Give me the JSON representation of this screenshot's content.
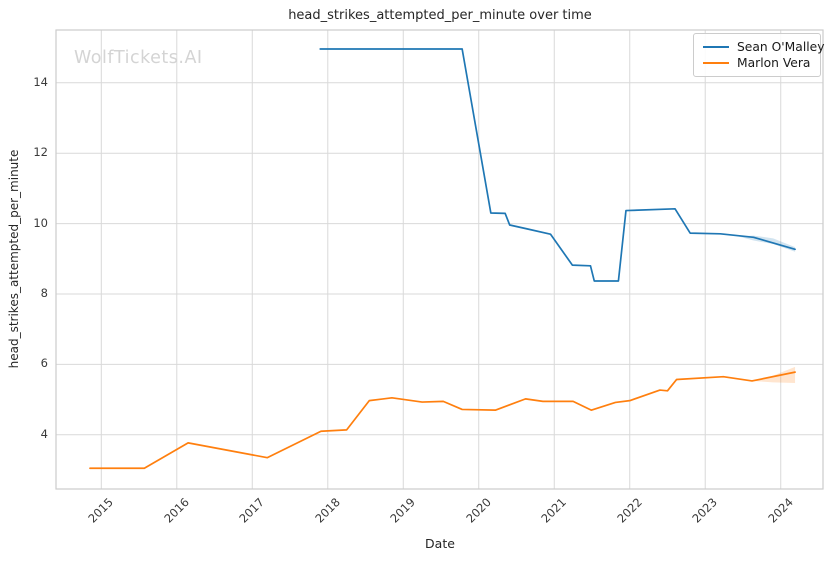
{
  "watermark": {
    "text": "WolfTickets.AI",
    "color": "#d4d4d4"
  },
  "legend": {
    "entries": [
      {
        "label": "Sean O'Malley",
        "color": "#1f77b4"
      },
      {
        "label": "Marlon Vera",
        "color": "#ff7f0e"
      }
    ]
  },
  "chart_data": {
    "type": "line",
    "title": "head_strikes_attempted_per_minute over time",
    "xlabel": "Date",
    "ylabel": "head_strikes_attempted_per_minute",
    "xlim": [
      2014.4,
      2024.56
    ],
    "ylim": [
      2.46,
      15.5
    ],
    "xticks": [
      2015,
      2016,
      2017,
      2018,
      2019,
      2020,
      2021,
      2022,
      2023,
      2024
    ],
    "yticks": [
      4,
      6,
      8,
      10,
      12,
      14
    ],
    "grid": true,
    "grid_color": "#d9d9d9",
    "border_color": "#cccccc",
    "legend_position": "upper-right",
    "series": [
      {
        "name": "Sean O'Malley",
        "color": "#1f77b4",
        "x": [
          2017.9,
          2019.78,
          2020.16,
          2020.35,
          2020.41,
          2020.64,
          2020.95,
          2021.24,
          2021.48,
          2021.53,
          2021.85,
          2021.95,
          2022.6,
          2022.8,
          2023.2,
          2023.64,
          2024.19
        ],
        "y": [
          14.96,
          14.96,
          10.3,
          10.29,
          9.96,
          9.85,
          9.7,
          8.82,
          8.8,
          8.37,
          8.37,
          10.37,
          10.42,
          9.73,
          9.71,
          9.61,
          9.27
        ],
        "band": {
          "x": [
            2023.45,
            2023.64,
            2023.9,
            2024.19
          ],
          "lo": [
            9.63,
            9.52,
            9.42,
            9.2
          ],
          "hi": [
            9.64,
            9.66,
            9.58,
            9.33
          ]
        }
      },
      {
        "name": "Marlon Vera",
        "color": "#ff7f0e",
        "x": [
          2014.85,
          2015.57,
          2016.15,
          2017.0,
          2017.2,
          2017.91,
          2018.25,
          2018.55,
          2018.85,
          2019.25,
          2019.53,
          2019.78,
          2020.22,
          2020.62,
          2020.85,
          2021.25,
          2021.49,
          2021.81,
          2022.0,
          2022.4,
          2022.5,
          2022.62,
          2023.24,
          2023.62,
          2024.19
        ],
        "y": [
          3.05,
          3.05,
          3.77,
          3.43,
          3.35,
          4.1,
          4.14,
          4.97,
          5.05,
          4.93,
          4.95,
          4.72,
          4.7,
          5.02,
          4.95,
          4.95,
          4.7,
          4.92,
          4.97,
          5.27,
          5.25,
          5.57,
          5.65,
          5.53,
          5.78
        ],
        "band": {
          "x": [
            2023.62,
            2023.9,
            2024.19
          ],
          "lo": [
            5.53,
            5.49,
            5.47
          ],
          "hi": [
            5.53,
            5.68,
            5.93
          ]
        }
      }
    ]
  }
}
